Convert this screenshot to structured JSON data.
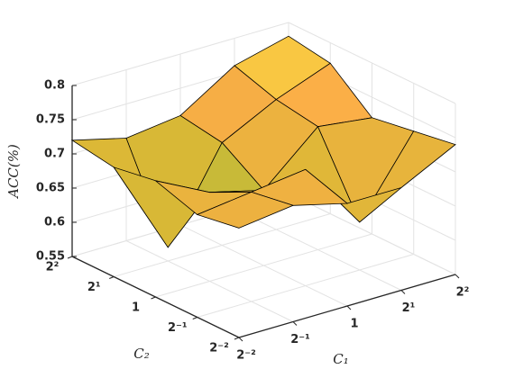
{
  "chart_data": {
    "type": "surface",
    "xlabel": "C₁",
    "ylabel": "C₂",
    "zlabel": "ACC(%)",
    "x": [
      0.25,
      0.5,
      1,
      2,
      4
    ],
    "y": [
      0.25,
      0.5,
      1,
      2,
      4
    ],
    "z": [
      [
        0.71,
        0.72,
        0.7,
        0.7,
        0.74
      ],
      [
        0.7,
        0.71,
        0.72,
        0.62,
        0.73
      ],
      [
        0.72,
        0.68,
        0.66,
        0.73,
        0.72
      ],
      [
        0.71,
        0.57,
        0.7,
        0.74,
        0.77
      ],
      [
        0.72,
        0.7,
        0.71,
        0.76,
        0.78
      ]
    ],
    "xscale": "log",
    "yscale": "log",
    "xlim": [
      0.25,
      4
    ],
    "ylim": [
      0.25,
      4
    ],
    "zlim": [
      0.55,
      0.8
    ],
    "xticks": [
      {
        "value": 0.25,
        "label": "2⁻²"
      },
      {
        "value": 0.5,
        "label": "2⁻¹"
      },
      1,
      {
        "value": 2,
        "label": "2¹"
      },
      {
        "value": 4,
        "label": "2²"
      }
    ],
    "yticks": [
      {
        "value": 0.25,
        "label": "2⁻²"
      },
      {
        "value": 0.5,
        "label": "2⁻¹"
      },
      1,
      {
        "value": 2,
        "label": "2¹"
      },
      {
        "value": 4,
        "label": "2²"
      }
    ],
    "zticks": [
      0.55,
      0.6,
      0.65,
      0.7,
      0.75,
      0.8
    ],
    "grid": true,
    "colormap": [
      "#2fb5a0",
      "#a4bd3c",
      "#dcb836",
      "#fbac48",
      "#f6ef3a"
    ]
  }
}
